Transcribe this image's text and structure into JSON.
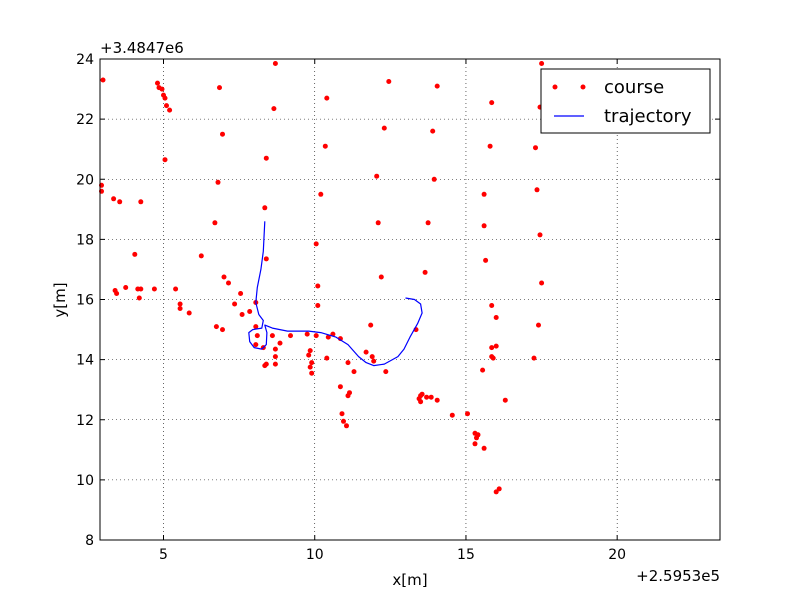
{
  "chart_data": {
    "type": "scatter",
    "title": "",
    "xlabel": "x[m]",
    "ylabel": "y[m]",
    "x_offset_label": "+2.5953e5",
    "y_offset_label": "+3.4847e6",
    "xlim": [
      2.9,
      23.4
    ],
    "ylim": [
      8,
      24
    ],
    "xticks": [
      5,
      10,
      15,
      20
    ],
    "yticks": [
      8,
      10,
      12,
      14,
      16,
      18,
      20,
      22,
      24
    ],
    "grid": true,
    "legend_position": "top-right",
    "series": [
      {
        "name": "course",
        "style": "points",
        "color": "#ff0000",
        "points": [
          [
            3.0,
            23.3
          ],
          [
            4.8,
            23.2
          ],
          [
            4.85,
            23.05
          ],
          [
            4.95,
            23.0
          ],
          [
            5.0,
            22.8
          ],
          [
            5.05,
            22.7
          ],
          [
            5.1,
            22.45
          ],
          [
            5.2,
            22.3
          ],
          [
            6.85,
            23.05
          ],
          [
            8.7,
            23.85
          ],
          [
            12.45,
            23.25
          ],
          [
            14.05,
            23.1
          ],
          [
            17.5,
            23.85
          ],
          [
            10.4,
            22.7
          ],
          [
            8.65,
            22.35
          ],
          [
            15.85,
            22.55
          ],
          [
            17.45,
            22.4
          ],
          [
            6.95,
            21.5
          ],
          [
            12.3,
            21.7
          ],
          [
            13.9,
            21.6
          ],
          [
            10.35,
            21.1
          ],
          [
            15.8,
            21.1
          ],
          [
            17.3,
            21.05
          ],
          [
            8.4,
            20.7
          ],
          [
            5.05,
            20.65
          ],
          [
            2.95,
            19.8
          ],
          [
            2.95,
            19.6
          ],
          [
            6.8,
            19.9
          ],
          [
            12.05,
            20.1
          ],
          [
            13.95,
            20.0
          ],
          [
            17.35,
            19.65
          ],
          [
            3.35,
            19.35
          ],
          [
            3.55,
            19.25
          ],
          [
            4.25,
            19.25
          ],
          [
            8.35,
            19.05
          ],
          [
            10.2,
            19.5
          ],
          [
            15.6,
            19.5
          ],
          [
            6.7,
            18.55
          ],
          [
            12.1,
            18.55
          ],
          [
            13.75,
            18.55
          ],
          [
            15.6,
            18.45
          ],
          [
            17.45,
            18.15
          ],
          [
            10.05,
            17.85
          ],
          [
            4.05,
            17.5
          ],
          [
            6.25,
            17.45
          ],
          [
            8.4,
            17.35
          ],
          [
            15.65,
            17.3
          ],
          [
            7.0,
            16.75
          ],
          [
            7.15,
            16.55
          ],
          [
            10.1,
            16.45
          ],
          [
            12.2,
            16.75
          ],
          [
            13.65,
            16.9
          ],
          [
            17.5,
            16.55
          ],
          [
            3.4,
            16.3
          ],
          [
            3.45,
            16.2
          ],
          [
            3.75,
            16.4
          ],
          [
            4.15,
            16.35
          ],
          [
            4.25,
            16.35
          ],
          [
            4.7,
            16.35
          ],
          [
            5.4,
            16.35
          ],
          [
            4.2,
            16.05
          ],
          [
            7.55,
            16.2
          ],
          [
            7.35,
            15.85
          ],
          [
            5.55,
            15.85
          ],
          [
            5.55,
            15.7
          ],
          [
            5.85,
            15.55
          ],
          [
            7.6,
            15.5
          ],
          [
            7.85,
            15.6
          ],
          [
            8.05,
            15.9
          ],
          [
            10.1,
            15.8
          ],
          [
            15.85,
            15.8
          ],
          [
            16.0,
            15.4
          ],
          [
            17.4,
            15.15
          ],
          [
            6.75,
            15.1
          ],
          [
            6.95,
            15.0
          ],
          [
            8.05,
            15.1
          ],
          [
            11.85,
            15.15
          ],
          [
            13.35,
            15.0
          ],
          [
            8.1,
            14.8
          ],
          [
            8.6,
            14.8
          ],
          [
            9.2,
            14.8
          ],
          [
            9.75,
            14.85
          ],
          [
            10.05,
            14.8
          ],
          [
            10.45,
            14.75
          ],
          [
            10.6,
            14.85
          ],
          [
            10.85,
            14.7
          ],
          [
            8.05,
            14.5
          ],
          [
            8.3,
            14.4
          ],
          [
            8.85,
            14.55
          ],
          [
            8.7,
            14.35
          ],
          [
            8.7,
            14.1
          ],
          [
            9.85,
            14.3
          ],
          [
            9.8,
            14.15
          ],
          [
            9.9,
            13.9
          ],
          [
            10.4,
            14.05
          ],
          [
            11.7,
            14.25
          ],
          [
            11.9,
            14.1
          ],
          [
            11.95,
            13.95
          ],
          [
            11.1,
            13.9
          ],
          [
            15.85,
            14.4
          ],
          [
            16.0,
            14.45
          ],
          [
            15.85,
            14.1
          ],
          [
            15.9,
            14.05
          ],
          [
            17.25,
            14.05
          ],
          [
            8.4,
            13.85
          ],
          [
            8.35,
            13.8
          ],
          [
            8.7,
            13.85
          ],
          [
            9.85,
            13.75
          ],
          [
            9.9,
            13.55
          ],
          [
            11.3,
            13.6
          ],
          [
            12.35,
            13.6
          ],
          [
            15.55,
            13.65
          ],
          [
            10.85,
            13.1
          ],
          [
            11.15,
            12.9
          ],
          [
            11.1,
            12.8
          ],
          [
            13.5,
            12.8
          ],
          [
            13.55,
            12.85
          ],
          [
            13.7,
            12.75
          ],
          [
            13.85,
            12.75
          ],
          [
            13.45,
            12.7
          ],
          [
            13.5,
            12.6
          ],
          [
            14.05,
            12.65
          ],
          [
            16.3,
            12.65
          ],
          [
            10.9,
            12.2
          ],
          [
            10.95,
            11.95
          ],
          [
            11.05,
            11.8
          ],
          [
            14.55,
            12.15
          ],
          [
            15.05,
            12.2
          ],
          [
            15.3,
            11.55
          ],
          [
            15.4,
            11.5
          ],
          [
            15.35,
            11.4
          ],
          [
            15.3,
            11.2
          ],
          [
            15.6,
            11.05
          ],
          [
            16.1,
            9.7
          ],
          [
            16.0,
            9.6
          ]
        ]
      },
      {
        "name": "trajectory",
        "style": "line",
        "color": "#0000ff",
        "points": [
          [
            8.35,
            18.6
          ],
          [
            8.3,
            17.6
          ],
          [
            8.22,
            17.0
          ],
          [
            8.1,
            16.4
          ],
          [
            8.05,
            15.9
          ],
          [
            8.15,
            15.5
          ],
          [
            8.3,
            15.3
          ],
          [
            8.25,
            15.05
          ],
          [
            7.95,
            15.0
          ],
          [
            7.82,
            14.9
          ],
          [
            7.85,
            14.6
          ],
          [
            8.0,
            14.4
          ],
          [
            8.25,
            14.35
          ],
          [
            8.4,
            14.5
          ],
          [
            8.42,
            14.9
          ],
          [
            8.35,
            15.15
          ],
          [
            8.6,
            15.05
          ],
          [
            9.1,
            14.95
          ],
          [
            9.8,
            14.95
          ],
          [
            10.2,
            14.9
          ],
          [
            10.7,
            14.75
          ],
          [
            11.1,
            14.5
          ],
          [
            11.45,
            14.1
          ],
          [
            11.7,
            13.9
          ],
          [
            11.95,
            13.8
          ],
          [
            12.3,
            13.85
          ],
          [
            12.75,
            14.1
          ],
          [
            12.95,
            14.35
          ],
          [
            13.15,
            14.75
          ],
          [
            13.4,
            15.2
          ],
          [
            13.55,
            15.55
          ],
          [
            13.5,
            15.85
          ],
          [
            13.3,
            16.0
          ],
          [
            13.0,
            16.05
          ]
        ]
      }
    ]
  }
}
